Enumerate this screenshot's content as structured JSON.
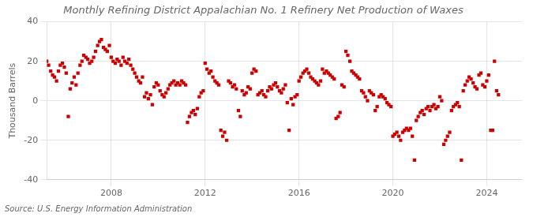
{
  "chart_data": {
    "type": "scatter",
    "title": "Monthly Refining District Appalachian No. 1 Refinery Net Production of Waxes",
    "ylabel": "Thousand Barrels",
    "annotations": [
      "Source: U.S. Energy Information Administration"
    ],
    "color": "#cc0000",
    "marker": "square",
    "grid": true,
    "xlim": [
      2005.25,
      2025.5
    ],
    "xticks": [
      2008,
      2012,
      2016,
      2020,
      2024
    ],
    "ylim": [
      -40,
      40
    ],
    "yticks": [
      -40,
      -20,
      0,
      20,
      40
    ],
    "x": [
      2005.25,
      2005.33,
      2005.42,
      2005.5,
      2005.58,
      2005.67,
      2005.75,
      2005.83,
      2005.92,
      2006.0,
      2006.08,
      2006.17,
      2006.25,
      2006.33,
      2006.42,
      2006.5,
      2006.58,
      2006.67,
      2006.75,
      2006.83,
      2006.92,
      2007.0,
      2007.08,
      2007.17,
      2007.25,
      2007.33,
      2007.42,
      2007.5,
      2007.58,
      2007.67,
      2007.75,
      2007.83,
      2007.92,
      2008.0,
      2008.08,
      2008.17,
      2008.25,
      2008.33,
      2008.42,
      2008.5,
      2008.58,
      2008.67,
      2008.75,
      2008.83,
      2008.92,
      2009.0,
      2009.08,
      2009.17,
      2009.25,
      2009.33,
      2009.42,
      2009.5,
      2009.58,
      2009.67,
      2009.75,
      2009.83,
      2009.92,
      2010.0,
      2010.08,
      2010.17,
      2010.25,
      2010.33,
      2010.42,
      2010.5,
      2010.58,
      2010.67,
      2010.75,
      2010.83,
      2010.92,
      2011.0,
      2011.08,
      2011.17,
      2011.25,
      2011.33,
      2011.42,
      2011.5,
      2011.58,
      2011.67,
      2011.75,
      2011.83,
      2011.92,
      2012.0,
      2012.08,
      2012.17,
      2012.25,
      2012.33,
      2012.42,
      2012.5,
      2012.58,
      2012.67,
      2012.75,
      2012.83,
      2012.92,
      2013.0,
      2013.08,
      2013.17,
      2013.25,
      2013.33,
      2013.42,
      2013.5,
      2013.58,
      2013.67,
      2013.75,
      2013.83,
      2013.92,
      2014.0,
      2014.08,
      2014.17,
      2014.25,
      2014.33,
      2014.42,
      2014.5,
      2014.58,
      2014.67,
      2014.75,
      2014.83,
      2014.92,
      2015.0,
      2015.08,
      2015.17,
      2015.25,
      2015.33,
      2015.42,
      2015.5,
      2015.58,
      2015.67,
      2015.75,
      2015.83,
      2015.92,
      2016.0,
      2016.08,
      2016.17,
      2016.25,
      2016.33,
      2016.42,
      2016.5,
      2016.58,
      2016.67,
      2016.75,
      2016.83,
      2016.92,
      2017.0,
      2017.08,
      2017.17,
      2017.25,
      2017.33,
      2017.42,
      2017.5,
      2017.58,
      2017.67,
      2017.75,
      2017.83,
      2017.92,
      2018.0,
      2018.08,
      2018.17,
      2018.25,
      2018.33,
      2018.42,
      2018.5,
      2018.58,
      2018.67,
      2018.75,
      2018.83,
      2018.92,
      2019.0,
      2019.08,
      2019.17,
      2019.25,
      2019.33,
      2019.42,
      2019.5,
      2019.58,
      2019.67,
      2019.75,
      2019.83,
      2019.92,
      2020.0,
      2020.08,
      2020.17,
      2020.25,
      2020.33,
      2020.42,
      2020.5,
      2020.58,
      2020.67,
      2020.75,
      2020.83,
      2020.92,
      2021.0,
      2021.08,
      2021.17,
      2021.25,
      2021.33,
      2021.42,
      2021.5,
      2021.58,
      2021.67,
      2021.75,
      2021.83,
      2021.92,
      2022.0,
      2022.08,
      2022.17,
      2022.25,
      2022.33,
      2022.42,
      2022.5,
      2022.58,
      2022.67,
      2022.75,
      2022.83,
      2022.92,
      2023.0,
      2023.08,
      2023.17,
      2023.25,
      2023.33,
      2023.42,
      2023.5,
      2023.58,
      2023.67,
      2023.75,
      2023.83,
      2023.92,
      2024.0,
      2024.08,
      2024.17,
      2024.25,
      2024.33,
      2024.42,
      2024.5
    ],
    "values": [
      20,
      18,
      15,
      13,
      12,
      10,
      15,
      18,
      19,
      17,
      14,
      -8,
      6,
      9,
      12,
      8,
      14,
      18,
      20,
      23,
      22,
      21,
      19,
      20,
      22,
      25,
      28,
      30,
      31,
      27,
      26,
      25,
      28,
      22,
      20,
      19,
      21,
      20,
      18,
      22,
      20,
      19,
      21,
      18,
      16,
      14,
      12,
      10,
      9,
      12,
      2,
      4,
      1,
      3,
      -2,
      7,
      9,
      8,
      5,
      3,
      2,
      4,
      6,
      8,
      9,
      10,
      8,
      9,
      8,
      10,
      9,
      8,
      -11,
      -8,
      -6,
      -5,
      -7,
      -4,
      2,
      4,
      5,
      19,
      16,
      14,
      15,
      12,
      10,
      9,
      8,
      -15,
      -18,
      -16,
      -20,
      10,
      9,
      7,
      8,
      6,
      -5,
      -8,
      5,
      3,
      4,
      7,
      6,
      14,
      16,
      15,
      3,
      4,
      5,
      3,
      2,
      5,
      7,
      6,
      8,
      9,
      7,
      5,
      4,
      6,
      8,
      -1,
      -15,
      1,
      -2,
      2,
      3,
      10,
      12,
      14,
      15,
      16,
      14,
      12,
      11,
      10,
      9,
      8,
      10,
      16,
      14,
      15,
      14,
      13,
      12,
      11,
      -9,
      -8,
      -6,
      8,
      7,
      25,
      23,
      20,
      15,
      14,
      13,
      12,
      11,
      5,
      4,
      2,
      0,
      5,
      4,
      3,
      -5,
      -3,
      2,
      3,
      2,
      1,
      -1,
      -2,
      -3,
      -18,
      -17,
      -16,
      -18,
      -20,
      -16,
      -15,
      -14,
      -15,
      -14,
      -18,
      -30,
      -10,
      -8,
      -6,
      -5,
      -7,
      -4,
      -3,
      -5,
      -3,
      -2,
      -4,
      -3,
      2,
      0,
      -22,
      -20,
      -18,
      -16,
      -5,
      -3,
      -2,
      -1,
      -3,
      -30,
      5,
      8,
      10,
      12,
      11,
      9,
      7,
      6,
      13,
      14,
      8,
      7,
      10,
      13,
      -15,
      -15,
      20,
      5,
      3
    ]
  }
}
